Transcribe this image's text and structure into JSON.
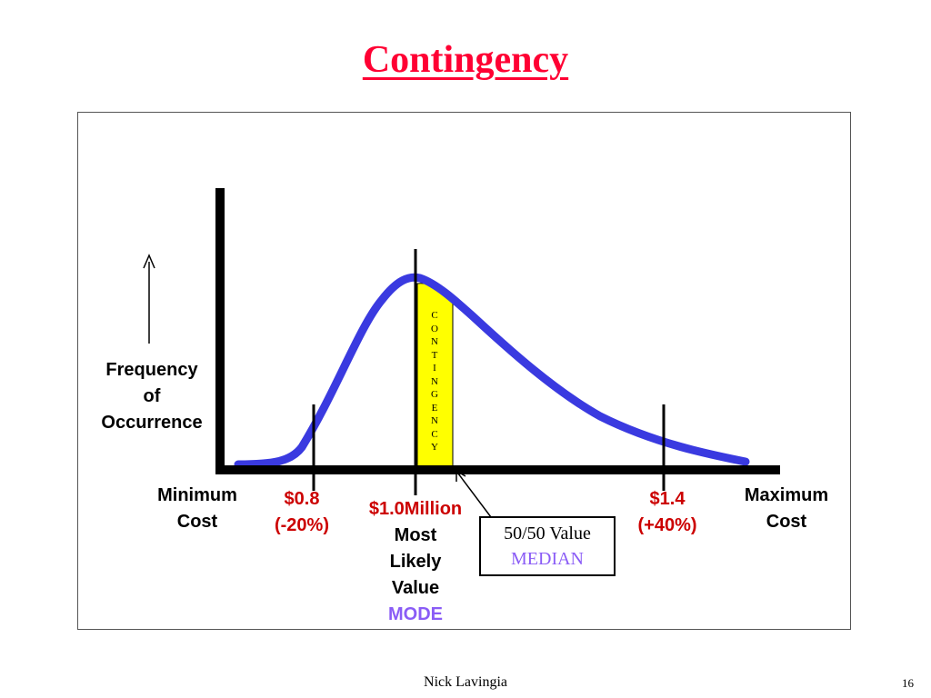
{
  "title": "Contingency",
  "y_axis_label": [
    "Frequency",
    "of",
    "Occurrence"
  ],
  "band_label_letters": [
    "C",
    "O",
    "N",
    "T",
    "I",
    "N",
    "G",
    "E",
    "N",
    "C",
    "Y"
  ],
  "x_labels": {
    "min": [
      "Minimum",
      "Cost"
    ],
    "low": [
      "$0.8",
      "(-20%)"
    ],
    "mode_value": "$1.0Million",
    "mode_desc": [
      "Most",
      "Likely",
      "Value"
    ],
    "mode_tag": "MODE",
    "high": [
      "$1.4",
      "(+40%)"
    ],
    "max": [
      "Maximum",
      "Cost"
    ]
  },
  "median_box": {
    "line1": "50/50 Value",
    "line2": "MEDIAN"
  },
  "footer": {
    "author": "Nick Lavingia",
    "page": "16"
  },
  "colors": {
    "title": "#ff0033",
    "curve": "#3a3ae0",
    "band": "#ffff00",
    "value_red": "#cc0000",
    "tag_purple": "#8a5cf6"
  }
}
